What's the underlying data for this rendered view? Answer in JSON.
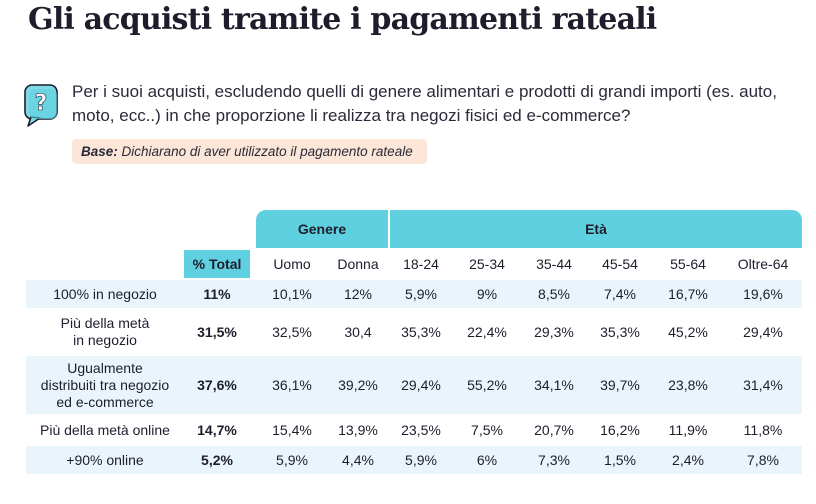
{
  "title": "Gli acquisti tramite i pagamenti rateali",
  "question": "Per i suoi acquisti, escludendo quelli di genere alimentari e prodotti di grandi importi (es. auto, moto, ecc..) in che proporzione li realizza tra negozi fisici ed e-commerce?",
  "base": {
    "label": "Base:",
    "text": "Dichiarano di aver utilizzato il pagamento rateale"
  },
  "table": {
    "groups": {
      "genere": "Genere",
      "eta": "Età"
    },
    "columns": [
      "% Total",
      "Uomo",
      "Donna",
      "18-24",
      "25-34",
      "35-44",
      "45-54",
      "55-64",
      "Oltre-64"
    ],
    "rows": [
      {
        "label_lines": [
          "100% in negozio"
        ],
        "values": [
          "11%",
          "10,1%",
          "12%",
          "5,9%",
          "9%",
          "8,5%",
          "7,4%",
          "16,7%",
          "19,6%"
        ]
      },
      {
        "label_lines": [
          "Più della metà",
          "in negozio"
        ],
        "values": [
          "31,5%",
          "32,5%",
          "30,4",
          "35,3%",
          "22,4%",
          "29,3%",
          "35,3%",
          "45,2%",
          "29,4%"
        ]
      },
      {
        "label_lines": [
          "Ugualmente",
          "distribuiti tra negozio",
          "ed e-commerce"
        ],
        "values": [
          "37,6%",
          "36,1%",
          "39,2%",
          "29,4%",
          "55,2%",
          "34,1%",
          "39,7%",
          "23,8%",
          "31,4%"
        ]
      },
      {
        "label_lines": [
          "Più della metà online"
        ],
        "values": [
          "14,7%",
          "15,4%",
          "13,9%",
          "23,5%",
          "7,5%",
          "20,7%",
          "16,2%",
          "11,9%",
          "11,8%"
        ]
      },
      {
        "label_lines": [
          "+90% online"
        ],
        "values": [
          "5,2%",
          "5,9%",
          "4,4%",
          "5,9%",
          "6%",
          "7,3%",
          "1,5%",
          "2,4%",
          "7,8%"
        ]
      }
    ]
  },
  "colors": {
    "header": "#5ed0e0",
    "shade": "#eaf5fb",
    "base_bg": "#fbe6d7",
    "icon": "#5ed0e0"
  },
  "icons": {
    "question": "speech-bubble-question-icon"
  }
}
